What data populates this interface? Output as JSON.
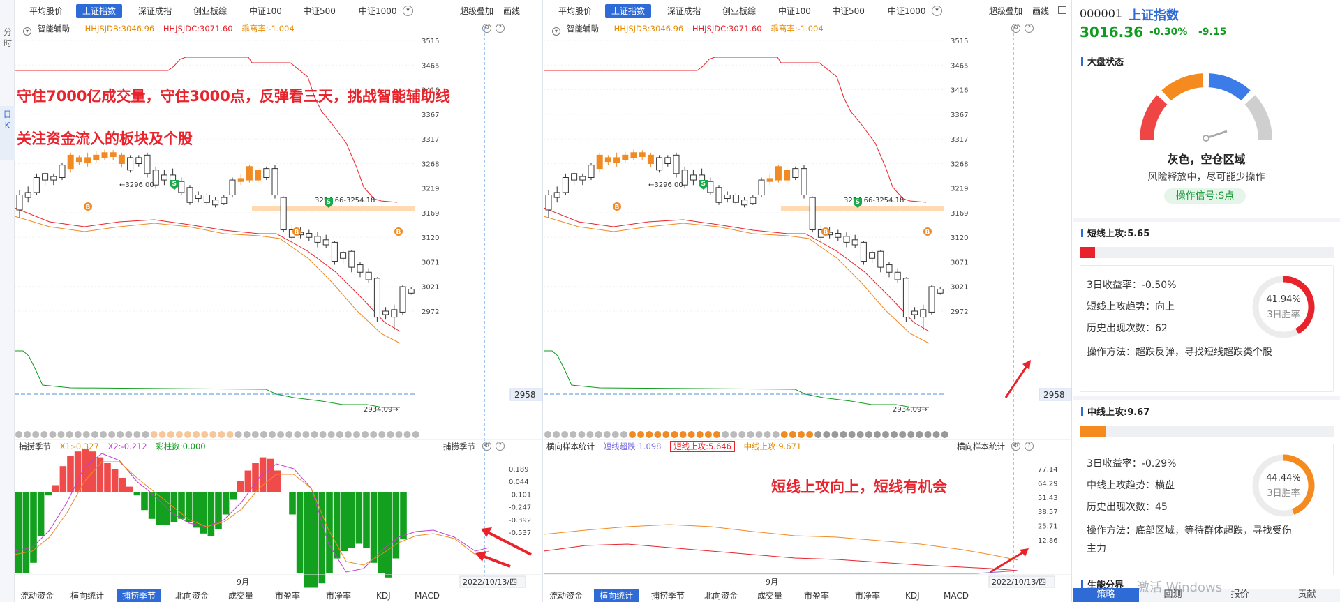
{
  "sidebar": {
    "tab_time": "分时",
    "tab_day": "日K"
  },
  "index_tabs": [
    "平均股价",
    "上证指数",
    "深证成指",
    "创业板综",
    "中证100",
    "中证500",
    "中证1000"
  ],
  "active_index": "上证指数",
  "toolbar": {
    "overlay": "超级叠加",
    "draw": "画线"
  },
  "main_info": {
    "label": "智能辅助",
    "hhjsjdb": "HHJSJDB:3046.96",
    "hhjsjdc": "HHJSJDC:3071.60",
    "ratio": "乖离率:-1.004"
  },
  "price_axis": [
    "3515",
    "3465",
    "3416",
    "3367",
    "3317",
    "3268",
    "3219",
    "3169",
    "3120",
    "3071",
    "3021",
    "2972"
  ],
  "current_price_tag": "2958",
  "chart_labels": {
    "high": "3296.00",
    "mid": "3254.66-3254.18",
    "low": "2934.09"
  },
  "date_label": "2022/10/13/四",
  "month_label": "9月",
  "left": {
    "annotation1": "守住7000亿成交量，守住3000点，反弹看三天，挑战智能辅助线",
    "annotation2": "关注资金流入的板块及个股",
    "sub": {
      "name": "捕捞季节",
      "x1": "X1:-0.327",
      "x2": "X2:-0.212",
      "cai": "彩柱数:0.000",
      "right_label": "捕捞季节"
    },
    "sub_axis": [
      "0.189",
      "0.044",
      "-0.101",
      "-0.247",
      "-0.392",
      "-0.537"
    ]
  },
  "right": {
    "annotation": "短线上攻向上，短线有机会",
    "sub": {
      "name": "横向样本统计",
      "s1": "短线超跌:1.098",
      "s2": "短线上攻:5.646",
      "s3": "中线上攻:9.671",
      "right_label": "横向样本统计"
    },
    "sub_axis": [
      "77.14",
      "64.29",
      "51.43",
      "38.57",
      "25.71",
      "12.86"
    ]
  },
  "bottom_tabs_left": [
    "流动资金",
    "横向统计",
    "捕捞季节",
    "北向资金",
    "成交量",
    "市盈率",
    "市净率",
    "KDJ",
    "MACD"
  ],
  "bottom_tabs_left_active": "捕捞季节",
  "bottom_tabs_right": [
    "流动资金",
    "横向统计",
    "捕捞季节",
    "北向资金",
    "成交量",
    "市盈率",
    "市净率",
    "KDJ",
    "MACD"
  ],
  "bottom_tabs_right_active": "横向统计",
  "quote": {
    "code": "000001",
    "name": "上证指数",
    "price": "3016.36",
    "pct": "-0.30%",
    "chg": "-9.15"
  },
  "market": {
    "title": "大盘状态",
    "state": "灰色，空仓区域",
    "desc": "风险释放中，尽可能少操作",
    "signal": "操作信号:S点"
  },
  "short": {
    "title": "短线上攻:5.65",
    "ret": "3日收益率：-0.50%",
    "trend": "短线上攻趋势：向上",
    "count": "历史出现次数：62",
    "method": "操作方法：超跌反弹，寻找短线超跌类个股",
    "win": "41.94%",
    "win_label": "3日胜率",
    "win_value": 0.4194
  },
  "mid": {
    "title": "中线上攻:9.67",
    "ret": "3日收益率：-0.29%",
    "trend": "中线上攻趋势：横盘",
    "count": "历史出现次数：45",
    "method1": "操作方法：底部区域，等待群体超跌，寻找受伤",
    "method2": "主力",
    "win": "44.44%",
    "win_label": "3日胜率",
    "win_value": 0.4444
  },
  "next_section": "生能分界",
  "watermark": "激活 Windows",
  "rp_tabs": [
    "策略",
    "回测",
    "报价",
    "贡献"
  ],
  "rp_tabs_active": "策略",
  "colors": {
    "up": "#e8232c",
    "down": "#0e9b1e",
    "accent": "#2f6bd6",
    "orange": "#f58a1f"
  }
}
